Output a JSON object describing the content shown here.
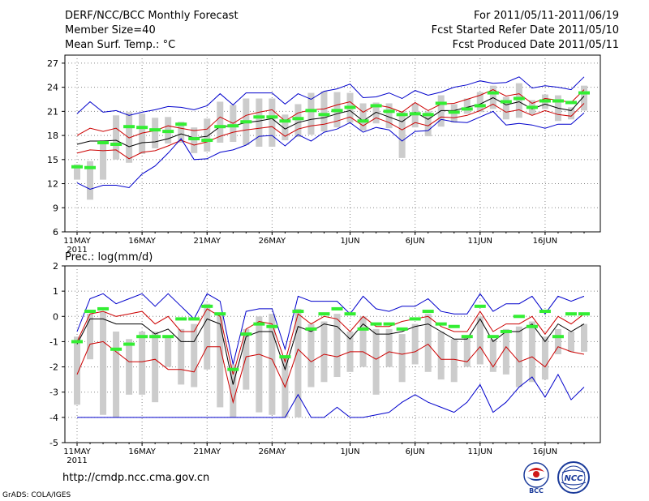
{
  "header": {
    "title": "DERF/NCC/BCC Monthly Forecast",
    "member": "Member Size=40",
    "variable": "Mean Surf. Temp.: °C",
    "period": "For 2011/05/11-2011/06/19",
    "start": "Fcst Started Refer Date 2011/05/10",
    "produced": "Fcst Produced Date 2011/05/11"
  },
  "footer": {
    "url": "http://cmdp.ncc.cma.gov.cn",
    "grads": "GrADS: COLA/IGES"
  },
  "logos": {
    "bcc": "BCC",
    "ncc": "NCC"
  },
  "colors": {
    "envelope": "#0000cc",
    "sigma": "#cc0000",
    "mean": "#000000",
    "box": "#cccccc",
    "median": "#33ee33",
    "grid": "#888888"
  },
  "chart_data": [
    {
      "type": "line",
      "title": "Mean Surf. Temp.: °C",
      "x_days": [
        1,
        2,
        3,
        4,
        5,
        6,
        7,
        8,
        9,
        10,
        11,
        12,
        13,
        14,
        15,
        16,
        17,
        18,
        19,
        20,
        21,
        22,
        23,
        24,
        25,
        26,
        27,
        28,
        29,
        30,
        31,
        32,
        33,
        34,
        35,
        36,
        37,
        38,
        39,
        40
      ],
      "x_ticks": [
        "11MAY",
        "16MAY",
        "21MAY",
        "26MAY",
        "1JUN",
        "6JUN",
        "11JUN",
        "16JUN"
      ],
      "x_tick_days": [
        1,
        6,
        11,
        16,
        22,
        27,
        32,
        37
      ],
      "year_label": "2011",
      "ylim": [
        6,
        28
      ],
      "yticks": [
        6,
        9,
        12,
        15,
        18,
        21,
        24,
        27
      ],
      "series": [
        {
          "name": "max",
          "values": [
            20.7,
            22.2,
            20.9,
            21.1,
            20.5,
            20.9,
            21.2,
            21.6,
            21.5,
            21.2,
            21.7,
            23.2,
            21.8,
            23.3,
            23.3,
            23.3,
            21.9,
            23.2,
            22.5,
            23.5,
            23.8,
            24.4,
            22.7,
            22.8,
            23.3,
            22.6,
            23.6,
            23.0,
            23.4,
            24.0,
            24.3,
            24.8,
            24.5,
            24.6,
            25.3,
            23.9,
            24.2,
            24.0,
            23.7,
            25.3
          ]
        },
        {
          "name": "plus1sd",
          "values": [
            18.0,
            18.9,
            18.5,
            18.9,
            17.7,
            18.3,
            18.6,
            19.2,
            18.9,
            18.6,
            18.8,
            20.3,
            19.5,
            20.5,
            20.9,
            21.2,
            19.8,
            20.8,
            21.2,
            21.3,
            21.8,
            22.2,
            20.9,
            21.8,
            21.5,
            20.9,
            22.1,
            21.1,
            21.9,
            22.0,
            22.5,
            23.0,
            23.7,
            22.9,
            23.2,
            22.0,
            22.6,
            22.4,
            22.1,
            23.7
          ]
        },
        {
          "name": "mean",
          "values": [
            16.9,
            17.3,
            17.3,
            17.4,
            16.6,
            17.1,
            17.2,
            17.6,
            18.2,
            17.7,
            17.9,
            19.1,
            19.2,
            19.6,
            19.8,
            20.1,
            18.8,
            19.6,
            20.0,
            20.2,
            20.7,
            21.1,
            19.8,
            20.9,
            20.3,
            19.7,
            20.9,
            20.0,
            21.1,
            21.1,
            21.5,
            21.9,
            22.7,
            21.8,
            22.2,
            21.3,
            21.9,
            21.4,
            21.1,
            22.9
          ]
        },
        {
          "name": "minus1sd",
          "values": [
            15.8,
            16.2,
            16.1,
            16.2,
            15.1,
            15.9,
            16.1,
            16.7,
            17.4,
            16.8,
            17.2,
            17.9,
            18.4,
            18.7,
            18.9,
            19.1,
            17.9,
            18.8,
            19.2,
            19.4,
            19.8,
            20.3,
            19.2,
            20.2,
            19.6,
            18.7,
            19.6,
            19.2,
            20.3,
            20.2,
            20.5,
            21.1,
            21.9,
            20.9,
            21.2,
            20.5,
            21.1,
            20.6,
            20.4,
            22.0
          ]
        },
        {
          "name": "min",
          "values": [
            12.1,
            11.3,
            11.8,
            11.8,
            11.5,
            13.2,
            14.2,
            15.8,
            17.6,
            15.0,
            15.1,
            15.9,
            16.2,
            16.8,
            17.9,
            18.0,
            16.7,
            18.1,
            17.3,
            18.4,
            18.8,
            19.6,
            18.4,
            19.0,
            18.7,
            17.3,
            18.5,
            18.6,
            20.0,
            19.7,
            19.6,
            20.3,
            21.0,
            19.3,
            19.5,
            19.3,
            18.9,
            19.4,
            19.4,
            20.8
          ]
        }
      ],
      "box_low": [
        12.5,
        10.0,
        12.5,
        15.0,
        14.6,
        15.7,
        16.4,
        17.0,
        17.1,
        15.8,
        16.0,
        17.1,
        17.2,
        16.8,
        16.6,
        16.6,
        17.4,
        17.8,
        18.1,
        18.5,
        19.0,
        19.6,
        18.6,
        19.5,
        18.9,
        15.2,
        19.0,
        17.9,
        19.1,
        19.6,
        20.7,
        20.9,
        21.3,
        20.0,
        20.2,
        20.6,
        21.3,
        19.8,
        20.0,
        21.1
      ],
      "box_high": [
        14.4,
        14.8,
        17.4,
        20.5,
        20.9,
        20.7,
        20.2,
        20.3,
        19.7,
        19.0,
        20.1,
        22.2,
        21.8,
        22.6,
        22.6,
        22.6,
        20.6,
        21.9,
        23.3,
        23.5,
        23.4,
        23.3,
        22.0,
        22.1,
        22.0,
        21.0,
        22.0,
        21.0,
        23.0,
        21.9,
        22.6,
        23.4,
        24.2,
        22.8,
        24.5,
        22.4,
        23.1,
        23.0,
        21.5,
        24.2
      ],
      "median": [
        14.1,
        14.0,
        17.1,
        16.9,
        19.1,
        19.0,
        18.7,
        18.5,
        19.4,
        17.6,
        17.4,
        19.1,
        19.2,
        19.7,
        20.3,
        20.3,
        19.8,
        20.1,
        21.1,
        20.6,
        21.1,
        21.5,
        19.8,
        21.7,
        21.0,
        20.6,
        20.7,
        20.6,
        22.0,
        20.9,
        21.3,
        21.7,
        23.3,
        22.2,
        22.6,
        21.5,
        22.3,
        22.3,
        22.1,
        23.3
      ]
    },
    {
      "type": "line",
      "title": "Prec.: log(mm/d)",
      "x_days": [
        1,
        2,
        3,
        4,
        5,
        6,
        7,
        8,
        9,
        10,
        11,
        12,
        13,
        14,
        15,
        16,
        17,
        18,
        19,
        20,
        21,
        22,
        23,
        24,
        25,
        26,
        27,
        28,
        29,
        30,
        31,
        32,
        33,
        34,
        35,
        36,
        37,
        38,
        39,
        40
      ],
      "x_ticks": [
        "11MAY",
        "16MAY",
        "21MAY",
        "26MAY",
        "1JUN",
        "6JUN",
        "11JUN",
        "16JUN"
      ],
      "x_tick_days": [
        1,
        6,
        11,
        16,
        22,
        27,
        32,
        37
      ],
      "year_label": "2011",
      "ylim": [
        -5,
        2
      ],
      "yticks": [
        -5,
        -4,
        -3,
        -2,
        -1,
        0,
        1,
        2
      ],
      "series": [
        {
          "name": "max",
          "values": [
            -0.6,
            0.7,
            0.9,
            0.5,
            0.7,
            0.9,
            0.4,
            0.9,
            0.4,
            -0.1,
            0.9,
            0.6,
            -1.9,
            0.2,
            0.3,
            0.3,
            -1.3,
            0.8,
            0.6,
            0.6,
            0.6,
            0.1,
            0.8,
            0.3,
            0.2,
            0.4,
            0.4,
            0.7,
            0.2,
            0.1,
            0.1,
            0.9,
            0.2,
            0.5,
            0.5,
            0.8,
            0.1,
            0.8,
            0.6,
            0.8
          ]
        },
        {
          "name": "plus1sd",
          "values": [
            -1.0,
            0.1,
            0.2,
            0.0,
            0.1,
            0.2,
            -0.3,
            0.0,
            -0.6,
            -0.6,
            0.3,
            0.0,
            -2.3,
            -0.5,
            -0.2,
            -0.3,
            -1.8,
            0.1,
            -0.3,
            0.0,
            -0.1,
            -0.6,
            0.0,
            -0.4,
            -0.4,
            -0.2,
            -0.1,
            0.0,
            -0.4,
            -0.6,
            -0.6,
            0.2,
            -0.6,
            -0.3,
            -0.3,
            0.0,
            -0.7,
            0.0,
            -0.3,
            0.1
          ]
        },
        {
          "name": "mean",
          "values": [
            -1.1,
            -0.1,
            -0.1,
            -0.3,
            -0.3,
            -0.3,
            -0.7,
            -0.5,
            -1.0,
            -1.0,
            -0.1,
            -0.3,
            -2.7,
            -0.8,
            -0.6,
            -0.6,
            -2.1,
            -0.4,
            -0.6,
            -0.3,
            -0.4,
            -0.9,
            -0.3,
            -0.7,
            -0.7,
            -0.6,
            -0.4,
            -0.3,
            -0.6,
            -0.9,
            -0.9,
            -0.1,
            -1.0,
            -0.6,
            -0.6,
            -0.3,
            -1.0,
            -0.3,
            -0.6,
            -0.3
          ]
        },
        {
          "name": "minus1sd",
          "values": [
            -2.3,
            -1.1,
            -1.0,
            -1.4,
            -1.8,
            -1.8,
            -1.7,
            -2.1,
            -2.1,
            -2.2,
            -1.2,
            -1.2,
            -3.4,
            -1.6,
            -1.5,
            -1.7,
            -2.8,
            -1.3,
            -1.8,
            -1.5,
            -1.6,
            -1.4,
            -1.4,
            -1.7,
            -1.4,
            -1.5,
            -1.4,
            -1.1,
            -1.7,
            -1.7,
            -1.8,
            -1.2,
            -2.0,
            -1.2,
            -1.8,
            -1.6,
            -2.0,
            -1.2,
            -1.4,
            -1.5
          ]
        },
        {
          "name": "min",
          "values": [
            -4,
            -4,
            -4,
            -4,
            -4,
            -4,
            -4,
            -4,
            -4,
            -4,
            -4,
            -4,
            -4,
            -4,
            -4,
            -4,
            -4,
            -3.1,
            -4,
            -4,
            -3.6,
            -4,
            -4,
            -3.9,
            -3.8,
            -3.4,
            -3.1,
            -3.4,
            -3.6,
            -3.8,
            -3.4,
            -2.7,
            -3.8,
            -3.4,
            -2.8,
            -2.4,
            -3.2,
            -2.3,
            -3.3,
            -2.8
          ]
        }
      ],
      "box_low": [
        -3.5,
        -1.7,
        -3.9,
        -4.0,
        -3.1,
        -3.1,
        -3.4,
        -2.0,
        -2.7,
        -2.8,
        -2.1,
        -3.6,
        -4.0,
        -2.9,
        -3.8,
        -3.9,
        -4.0,
        -4.0,
        -2.8,
        -2.6,
        -2.4,
        -2.2,
        -2.0,
        -3.1,
        -2.0,
        -2.6,
        -1.9,
        -2.2,
        -2.5,
        -2.6,
        -2.0,
        -1.9,
        -2.2,
        -2.3,
        -2.8,
        -2.6,
        -2.5,
        -1.5,
        -1.4,
        -1.4
      ],
      "box_high": [
        -0.8,
        0.1,
        0.2,
        -0.6,
        -0.9,
        -0.6,
        -0.6,
        -0.8,
        -0.5,
        -0.3,
        0.5,
        0.1,
        -1.9,
        -0.5,
        0.0,
        0.1,
        -1.6,
        0.3,
        -0.3,
        -0.2,
        0.1,
        -0.6,
        0.0,
        -0.5,
        -0.5,
        -0.7,
        -0.3,
        0.1,
        -0.6,
        -0.9,
        -0.8,
        0.0,
        -0.9,
        -0.5,
        -0.4,
        -0.2,
        -0.8,
        -0.5,
        -0.6,
        -0.3
      ],
      "median": [
        -1.0,
        0.2,
        0.3,
        -1.3,
        -1.1,
        -0.8,
        -0.8,
        -0.8,
        -0.1,
        -0.1,
        0.4,
        0.1,
        -2.1,
        -0.7,
        -0.3,
        -0.4,
        -1.6,
        0.2,
        -0.5,
        0.1,
        0.3,
        0.1,
        -0.5,
        -0.3,
        -0.3,
        -0.5,
        -0.1,
        0.2,
        -0.3,
        -0.4,
        -0.8,
        0.4,
        -0.8,
        -0.6,
        0.0,
        -0.4,
        0.2,
        -0.8,
        0.1,
        0.1
      ]
    }
  ]
}
